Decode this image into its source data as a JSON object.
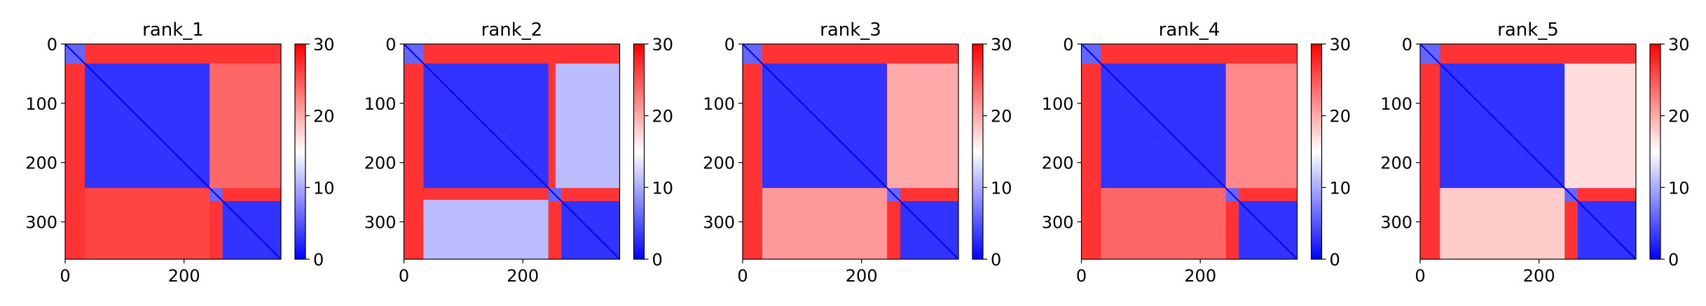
{
  "chart_data": [
    {
      "type": "heatmap",
      "title": "rank_1",
      "x_ticks": [
        0,
        200
      ],
      "y_ticks": [
        0,
        100,
        200,
        300
      ],
      "xlim": [
        0,
        363
      ],
      "ylim": [
        363,
        0
      ],
      "colorbar": {
        "colormap": "bwr",
        "range": [
          0,
          30
        ],
        "ticks": [
          0,
          10,
          20,
          30
        ]
      },
      "blocks": [
        {
          "rows": [
            0,
            33
          ],
          "cols": [
            0,
            33
          ],
          "value": 6
        },
        {
          "rows": [
            33,
            243
          ],
          "cols": [
            33,
            243
          ],
          "value": 3
        },
        {
          "rows": [
            243,
            265
          ],
          "cols": [
            243,
            265
          ],
          "value": 6
        },
        {
          "rows": [
            265,
            363
          ],
          "cols": [
            265,
            363
          ],
          "value": 3
        },
        {
          "rows": [
            33,
            243
          ],
          "cols": [
            243,
            363
          ],
          "value": 24
        },
        {
          "rows": [
            243,
            363
          ],
          "cols": [
            33,
            243
          ],
          "value": 26
        }
      ],
      "background": 27
    },
    {
      "type": "heatmap",
      "title": "rank_2",
      "x_ticks": [
        0,
        200
      ],
      "y_ticks": [
        0,
        100,
        200,
        300
      ],
      "xlim": [
        0,
        363
      ],
      "ylim": [
        363,
        0
      ],
      "colorbar": {
        "colormap": "bwr",
        "range": [
          0,
          30
        ],
        "ticks": [
          0,
          10,
          20,
          30
        ]
      },
      "blocks": [
        {
          "rows": [
            0,
            33
          ],
          "cols": [
            0,
            33
          ],
          "value": 6
        },
        {
          "rows": [
            33,
            243
          ],
          "cols": [
            33,
            243
          ],
          "value": 3
        },
        {
          "rows": [
            243,
            265
          ],
          "cols": [
            243,
            265
          ],
          "value": 6
        },
        {
          "rows": [
            265,
            363
          ],
          "cols": [
            265,
            363
          ],
          "value": 3
        },
        {
          "rows": [
            33,
            243
          ],
          "cols": [
            255,
            363
          ],
          "value": 11
        },
        {
          "rows": [
            263,
            363
          ],
          "cols": [
            33,
            243
          ],
          "value": 11
        }
      ],
      "background": 27
    },
    {
      "type": "heatmap",
      "title": "rank_3",
      "x_ticks": [
        0,
        200
      ],
      "y_ticks": [
        0,
        100,
        200,
        300
      ],
      "xlim": [
        0,
        363
      ],
      "ylim": [
        363,
        0
      ],
      "colorbar": {
        "colormap": "bwr",
        "range": [
          0,
          30
        ],
        "ticks": [
          0,
          10,
          20,
          30
        ]
      },
      "blocks": [
        {
          "rows": [
            0,
            33
          ],
          "cols": [
            0,
            33
          ],
          "value": 6
        },
        {
          "rows": [
            33,
            243
          ],
          "cols": [
            33,
            243
          ],
          "value": 3
        },
        {
          "rows": [
            243,
            265
          ],
          "cols": [
            243,
            265
          ],
          "value": 6
        },
        {
          "rows": [
            265,
            363
          ],
          "cols": [
            265,
            363
          ],
          "value": 3
        },
        {
          "rows": [
            33,
            243
          ],
          "cols": [
            243,
            363
          ],
          "value": 20
        },
        {
          "rows": [
            243,
            363
          ],
          "cols": [
            33,
            243
          ],
          "value": 21
        }
      ],
      "background": 27
    },
    {
      "type": "heatmap",
      "title": "rank_4",
      "x_ticks": [
        0,
        200
      ],
      "y_ticks": [
        0,
        100,
        200,
        300
      ],
      "xlim": [
        0,
        363
      ],
      "ylim": [
        363,
        0
      ],
      "colorbar": {
        "colormap": "bwr",
        "range": [
          0,
          30
        ],
        "ticks": [
          0,
          10,
          20,
          30
        ]
      },
      "blocks": [
        {
          "rows": [
            0,
            33
          ],
          "cols": [
            0,
            33
          ],
          "value": 6
        },
        {
          "rows": [
            33,
            243
          ],
          "cols": [
            33,
            243
          ],
          "value": 3
        },
        {
          "rows": [
            243,
            265
          ],
          "cols": [
            243,
            265
          ],
          "value": 6
        },
        {
          "rows": [
            265,
            363
          ],
          "cols": [
            265,
            363
          ],
          "value": 3
        },
        {
          "rows": [
            33,
            243
          ],
          "cols": [
            243,
            363
          ],
          "value": 22
        },
        {
          "rows": [
            243,
            363
          ],
          "cols": [
            33,
            243
          ],
          "value": 24
        }
      ],
      "background": 27
    },
    {
      "type": "heatmap",
      "title": "rank_5",
      "x_ticks": [
        0,
        200
      ],
      "y_ticks": [
        0,
        100,
        200,
        300
      ],
      "xlim": [
        0,
        363
      ],
      "ylim": [
        363,
        0
      ],
      "colorbar": {
        "colormap": "bwr",
        "range": [
          0,
          30
        ],
        "ticks": [
          0,
          10,
          20,
          30
        ]
      },
      "blocks": [
        {
          "rows": [
            0,
            33
          ],
          "cols": [
            0,
            33
          ],
          "value": 6
        },
        {
          "rows": [
            33,
            243
          ],
          "cols": [
            33,
            243
          ],
          "value": 3
        },
        {
          "rows": [
            243,
            265
          ],
          "cols": [
            243,
            265
          ],
          "value": 6
        },
        {
          "rows": [
            265,
            363
          ],
          "cols": [
            265,
            363
          ],
          "value": 3
        },
        {
          "rows": [
            33,
            243
          ],
          "cols": [
            243,
            363
          ],
          "value": 17
        },
        {
          "rows": [
            243,
            363
          ],
          "cols": [
            33,
            243
          ],
          "value": 18
        }
      ],
      "background": 27
    }
  ]
}
